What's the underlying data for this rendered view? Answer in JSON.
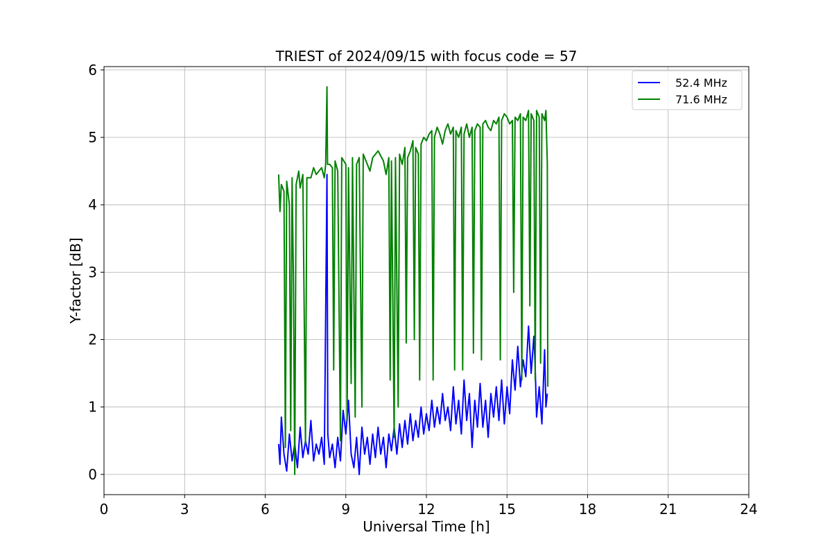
{
  "chart_data": {
    "type": "line",
    "title": "TRIEST of 2024/09/15 with focus code = 57",
    "xlabel": "Universal Time [h]",
    "ylabel": "Y-factor [dB]",
    "xlim": [
      0,
      24
    ],
    "ylim": [
      -0.3,
      6.05
    ],
    "xticks": [
      0,
      3,
      6,
      9,
      12,
      15,
      18,
      21,
      24
    ],
    "yticks": [
      0,
      1,
      2,
      3,
      4,
      5,
      6
    ],
    "grid": true,
    "legend": "top-right",
    "series": [
      {
        "name": "52.4 MHz",
        "color": "#0000ff",
        "points": [
          [
            6.5,
            0.45
          ],
          [
            6.55,
            0.15
          ],
          [
            6.6,
            0.85
          ],
          [
            6.7,
            0.3
          ],
          [
            6.8,
            0.05
          ],
          [
            6.9,
            0.6
          ],
          [
            7.0,
            0.2
          ],
          [
            7.1,
            0.45
          ],
          [
            7.2,
            0.1
          ],
          [
            7.3,
            0.7
          ],
          [
            7.4,
            0.25
          ],
          [
            7.5,
            0.5
          ],
          [
            7.6,
            0.3
          ],
          [
            7.7,
            0.8
          ],
          [
            7.8,
            0.2
          ],
          [
            7.9,
            0.45
          ],
          [
            8.0,
            0.3
          ],
          [
            8.1,
            0.55
          ],
          [
            8.2,
            0.15
          ],
          [
            8.3,
            4.45
          ],
          [
            8.33,
            0.6
          ],
          [
            8.4,
            0.25
          ],
          [
            8.5,
            0.45
          ],
          [
            8.6,
            0.1
          ],
          [
            8.7,
            0.55
          ],
          [
            8.8,
            0.2
          ],
          [
            8.9,
            0.95
          ],
          [
            9.0,
            0.6
          ],
          [
            9.1,
            1.1
          ],
          [
            9.2,
            0.3
          ],
          [
            9.3,
            0.1
          ],
          [
            9.4,
            0.55
          ],
          [
            9.5,
            0.0
          ],
          [
            9.6,
            0.7
          ],
          [
            9.7,
            0.3
          ],
          [
            9.8,
            0.55
          ],
          [
            9.9,
            0.15
          ],
          [
            10.0,
            0.6
          ],
          [
            10.1,
            0.25
          ],
          [
            10.2,
            0.7
          ],
          [
            10.3,
            0.3
          ],
          [
            10.4,
            0.55
          ],
          [
            10.5,
            0.1
          ],
          [
            10.6,
            0.6
          ],
          [
            10.7,
            0.35
          ],
          [
            10.8,
            0.7
          ],
          [
            10.9,
            0.3
          ],
          [
            11.0,
            0.75
          ],
          [
            11.1,
            0.4
          ],
          [
            11.2,
            0.8
          ],
          [
            11.3,
            0.45
          ],
          [
            11.4,
            0.9
          ],
          [
            11.5,
            0.5
          ],
          [
            11.6,
            0.8
          ],
          [
            11.7,
            0.55
          ],
          [
            11.8,
            1.0
          ],
          [
            11.9,
            0.6
          ],
          [
            12.0,
            0.9
          ],
          [
            12.1,
            0.65
          ],
          [
            12.2,
            1.1
          ],
          [
            12.3,
            0.7
          ],
          [
            12.4,
            1.0
          ],
          [
            12.5,
            0.75
          ],
          [
            12.6,
            1.2
          ],
          [
            12.7,
            0.8
          ],
          [
            12.8,
            1.0
          ],
          [
            12.9,
            0.65
          ],
          [
            13.0,
            1.3
          ],
          [
            13.1,
            0.75
          ],
          [
            13.2,
            1.1
          ],
          [
            13.3,
            0.6
          ],
          [
            13.4,
            1.4
          ],
          [
            13.5,
            0.8
          ],
          [
            13.6,
            1.2
          ],
          [
            13.7,
            0.4
          ],
          [
            13.8,
            1.1
          ],
          [
            13.9,
            0.7
          ],
          [
            14.0,
            1.35
          ],
          [
            14.1,
            0.7
          ],
          [
            14.2,
            1.1
          ],
          [
            14.3,
            0.55
          ],
          [
            14.4,
            1.2
          ],
          [
            14.5,
            0.85
          ],
          [
            14.6,
            1.3
          ],
          [
            14.7,
            0.8
          ],
          [
            14.8,
            1.4
          ],
          [
            14.9,
            0.75
          ],
          [
            15.0,
            1.3
          ],
          [
            15.1,
            0.9
          ],
          [
            15.2,
            1.7
          ],
          [
            15.3,
            1.25
          ],
          [
            15.4,
            1.9
          ],
          [
            15.5,
            1.3
          ],
          [
            15.6,
            1.7
          ],
          [
            15.7,
            1.45
          ],
          [
            15.8,
            2.2
          ],
          [
            15.9,
            1.5
          ],
          [
            16.0,
            2.05
          ],
          [
            16.05,
            1.6
          ],
          [
            16.1,
            0.85
          ],
          [
            16.2,
            1.3
          ],
          [
            16.3,
            0.75
          ],
          [
            16.4,
            1.85
          ],
          [
            16.45,
            1.0
          ],
          [
            16.5,
            1.2
          ]
        ]
      },
      {
        "name": "71.6 MHz",
        "color": "#008000",
        "points": [
          [
            6.5,
            4.45
          ],
          [
            6.55,
            3.9
          ],
          [
            6.6,
            4.3
          ],
          [
            6.7,
            4.2
          ],
          [
            6.75,
            0.4
          ],
          [
            6.8,
            4.35
          ],
          [
            6.9,
            4.0
          ],
          [
            6.95,
            0.65
          ],
          [
            7.0,
            4.4
          ],
          [
            7.05,
            2.9
          ],
          [
            7.1,
            0.0
          ],
          [
            7.15,
            4.3
          ],
          [
            7.25,
            4.5
          ],
          [
            7.3,
            4.25
          ],
          [
            7.4,
            4.45
          ],
          [
            7.5,
            0.45
          ],
          [
            7.55,
            4.4
          ],
          [
            7.7,
            4.4
          ],
          [
            7.8,
            4.55
          ],
          [
            7.9,
            4.45
          ],
          [
            8.0,
            4.5
          ],
          [
            8.1,
            4.55
          ],
          [
            8.2,
            4.4
          ],
          [
            8.25,
            4.6
          ],
          [
            8.28,
            5.25
          ],
          [
            8.3,
            5.75
          ],
          [
            8.32,
            4.6
          ],
          [
            8.4,
            4.6
          ],
          [
            8.5,
            4.55
          ],
          [
            8.55,
            1.55
          ],
          [
            8.6,
            4.65
          ],
          [
            8.7,
            4.5
          ],
          [
            8.8,
            0.5
          ],
          [
            8.85,
            4.7
          ],
          [
            9.0,
            4.6
          ],
          [
            9.05,
            0.8
          ],
          [
            9.1,
            4.55
          ],
          [
            9.2,
            1.35
          ],
          [
            9.25,
            4.7
          ],
          [
            9.35,
            0.85
          ],
          [
            9.4,
            4.6
          ],
          [
            9.5,
            4.7
          ],
          [
            9.6,
            1.0
          ],
          [
            9.65,
            4.75
          ],
          [
            9.8,
            4.6
          ],
          [
            9.9,
            4.5
          ],
          [
            10.0,
            4.7
          ],
          [
            10.2,
            4.8
          ],
          [
            10.4,
            4.65
          ],
          [
            10.5,
            4.45
          ],
          [
            10.6,
            4.7
          ],
          [
            10.65,
            1.4
          ],
          [
            10.7,
            4.65
          ],
          [
            10.8,
            0.55
          ],
          [
            10.85,
            4.7
          ],
          [
            10.95,
            1.0
          ],
          [
            11.0,
            4.75
          ],
          [
            11.1,
            4.6
          ],
          [
            11.2,
            4.85
          ],
          [
            11.25,
            1.95
          ],
          [
            11.3,
            4.7
          ],
          [
            11.4,
            4.8
          ],
          [
            11.5,
            4.95
          ],
          [
            11.55,
            2.0
          ],
          [
            11.6,
            4.85
          ],
          [
            11.7,
            4.75
          ],
          [
            11.75,
            1.4
          ],
          [
            11.8,
            4.9
          ],
          [
            11.9,
            5.0
          ],
          [
            12.0,
            4.95
          ],
          [
            12.1,
            5.05
          ],
          [
            12.2,
            5.1
          ],
          [
            12.25,
            1.4
          ],
          [
            12.3,
            5.0
          ],
          [
            12.4,
            5.15
          ],
          [
            12.5,
            5.05
          ],
          [
            12.6,
            4.9
          ],
          [
            12.7,
            5.1
          ],
          [
            12.8,
            5.2
          ],
          [
            12.9,
            5.05
          ],
          [
            13.0,
            5.15
          ],
          [
            13.05,
            1.55
          ],
          [
            13.1,
            5.1
          ],
          [
            13.2,
            5.0
          ],
          [
            13.3,
            5.15
          ],
          [
            13.35,
            1.55
          ],
          [
            13.4,
            5.05
          ],
          [
            13.5,
            5.2
          ],
          [
            13.6,
            5.0
          ],
          [
            13.7,
            5.15
          ],
          [
            13.75,
            1.8
          ],
          [
            13.8,
            5.1
          ],
          [
            13.9,
            5.2
          ],
          [
            14.0,
            5.15
          ],
          [
            14.05,
            1.7
          ],
          [
            14.1,
            5.2
          ],
          [
            14.2,
            5.25
          ],
          [
            14.3,
            5.15
          ],
          [
            14.4,
            5.1
          ],
          [
            14.5,
            5.25
          ],
          [
            14.6,
            5.2
          ],
          [
            14.7,
            5.3
          ],
          [
            14.75,
            1.7
          ],
          [
            14.8,
            5.25
          ],
          [
            14.9,
            5.35
          ],
          [
            15.0,
            5.3
          ],
          [
            15.1,
            5.2
          ],
          [
            15.2,
            5.25
          ],
          [
            15.25,
            2.7
          ],
          [
            15.3,
            5.3
          ],
          [
            15.4,
            5.25
          ],
          [
            15.5,
            5.35
          ],
          [
            15.55,
            1.4
          ],
          [
            15.6,
            5.3
          ],
          [
            15.7,
            5.25
          ],
          [
            15.8,
            5.4
          ],
          [
            15.85,
            2.5
          ],
          [
            15.9,
            5.35
          ],
          [
            16.0,
            5.25
          ],
          [
            16.05,
            1.4
          ],
          [
            16.1,
            5.4
          ],
          [
            16.2,
            5.3
          ],
          [
            16.25,
            1.65
          ],
          [
            16.3,
            5.35
          ],
          [
            16.4,
            5.25
          ],
          [
            16.45,
            5.4
          ],
          [
            16.5,
            4.6
          ],
          [
            16.52,
            1.3
          ]
        ]
      }
    ]
  }
}
